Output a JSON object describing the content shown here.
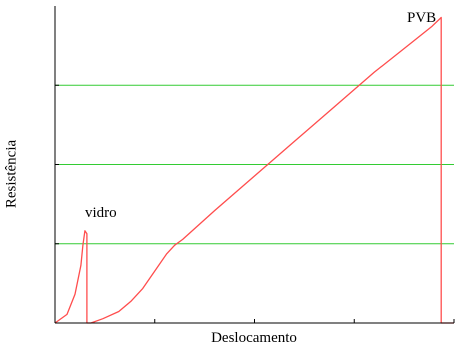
{
  "chart_data": {
    "type": "line",
    "xlabel": "Deslocamento",
    "ylabel": "Resistência",
    "grid": false,
    "reference_lines": {
      "color": "#33cc33",
      "y": [
        0.25,
        0.5,
        0.75
      ]
    },
    "series": [
      {
        "color": "#ff4d4d",
        "x": [
          0.0,
          0.03,
          0.05,
          0.065,
          0.07,
          0.075,
          0.08,
          0.08,
          0.09,
          0.12,
          0.16,
          0.19,
          0.22,
          0.255,
          0.28,
          0.3,
          0.32,
          0.4,
          0.5,
          0.6,
          0.7,
          0.8,
          0.9,
          0.945,
          0.968,
          0.968,
          1.0
        ],
        "y": [
          0.0,
          0.03,
          0.1,
          0.2,
          0.27,
          0.32,
          0.31,
          0.0,
          0.0,
          0.015,
          0.04,
          0.075,
          0.12,
          0.19,
          0.24,
          0.27,
          0.29,
          0.39,
          0.51,
          0.63,
          0.75,
          0.87,
          0.98,
          1.03,
          1.06,
          0.0,
          0.0
        ]
      }
    ],
    "annotations": [
      {
        "text": "vidro",
        "x": 0.08,
        "y": 0.33
      },
      {
        "text": "PVB",
        "x": 0.968,
        "y": 1.06
      }
    ],
    "xlim": [
      0,
      1
    ],
    "ylim": [
      0,
      1.1
    ]
  }
}
